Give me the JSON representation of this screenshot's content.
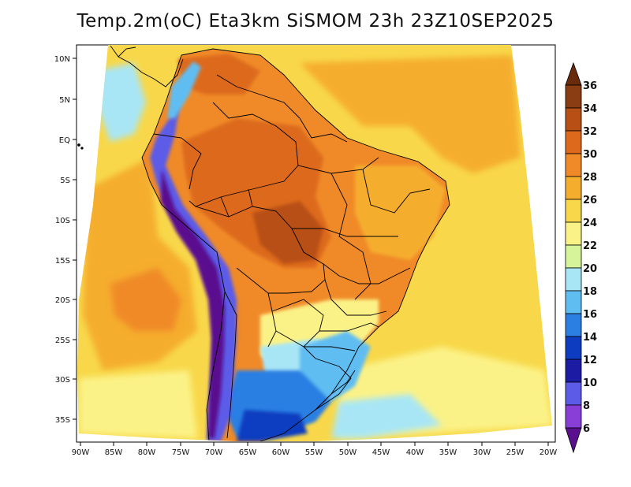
{
  "title": "Temp.2m(oC) Eta3km SiSMOM 23h 23Z10SEP2025",
  "map": {
    "lat_labels": [
      "10N",
      "5N",
      "EQ",
      "5S",
      "10S",
      "15S",
      "20S",
      "25S",
      "30S",
      "35S"
    ],
    "lon_labels": [
      "90W",
      "85W",
      "80W",
      "75W",
      "70W",
      "65W",
      "60W",
      "55W",
      "50W",
      "45W",
      "40W",
      "35W",
      "30W",
      "25W",
      "20W"
    ]
  },
  "colorbar": {
    "labels": [
      "36",
      "34",
      "32",
      "30",
      "28",
      "26",
      "24",
      "22",
      "20",
      "18",
      "16",
      "14",
      "12",
      "10",
      "8",
      "6"
    ],
    "colors_top_to_bottom": [
      "#6a2a0c",
      "#8a3c12",
      "#b84f14",
      "#dd6a1c",
      "#f08a28",
      "#f5ad2e",
      "#f8d84a",
      "#fbf287",
      "#d6f59a",
      "#a8e6f5",
      "#60bdf2",
      "#2b7fe3",
      "#0d3cc0",
      "#1c1ba3",
      "#5b5be8",
      "#8a3ed8",
      "#5a0f8f"
    ]
  },
  "colors": {
    "ocean_warm": "#f5ad2e",
    "ocean_mild": "#f8d84a",
    "land_hot": "#dd6a1c",
    "land_very_hot": "#b84f14",
    "andes_cold": "#5a0f8f",
    "south_cool": "#60bdf2"
  }
}
